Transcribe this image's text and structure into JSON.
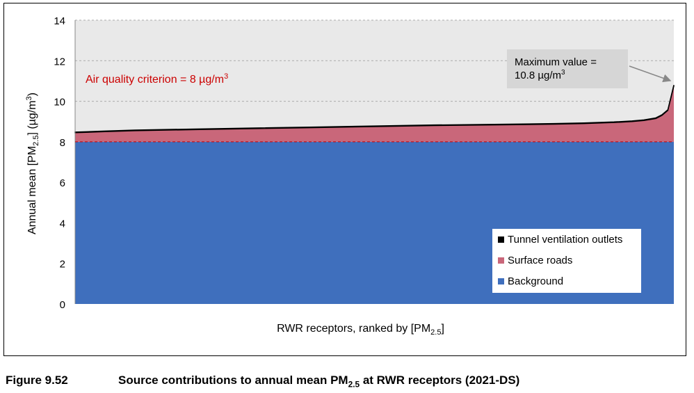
{
  "figure": {
    "number": "Figure 9.52",
    "title_pre": "Source contributions to annual mean PM",
    "title_sub": "2.5",
    "title_post": " at RWR receptors (2021-DS)"
  },
  "chart_data": {
    "type": "area",
    "stacked": true,
    "xlabel_pre": "RWR receptors, ranked by [PM",
    "xlabel_sub": "2.5",
    "xlabel_post": "]",
    "ylabel_pre": "Annual mean [PM",
    "ylabel_sub": "2.5",
    "ylabel_mid": "] (µg/m",
    "ylabel_sup": "3",
    "ylabel_post": ")",
    "ylim": [
      0,
      14
    ],
    "yticks": [
      "0",
      "2",
      "4",
      "6",
      "8",
      "10",
      "12",
      "14"
    ],
    "grid": true,
    "legend_position": "bottom-right",
    "x": [
      0,
      0.05,
      0.1,
      0.2,
      0.3,
      0.4,
      0.5,
      0.6,
      0.7,
      0.8,
      0.85,
      0.9,
      0.93,
      0.95,
      0.97,
      0.98,
      0.99,
      1.0
    ],
    "series": [
      {
        "name": "Tunnel ventilation outlets",
        "color": "#000000",
        "values": [
          0.03,
          0.03,
          0.03,
          0.03,
          0.03,
          0.03,
          0.03,
          0.03,
          0.03,
          0.03,
          0.03,
          0.03,
          0.03,
          0.03,
          0.03,
          0.03,
          0.03,
          0.05
        ]
      },
      {
        "name": "Surface roads",
        "color": "#c9677a",
        "values": [
          0.45,
          0.5,
          0.55,
          0.6,
          0.65,
          0.7,
          0.75,
          0.8,
          0.83,
          0.87,
          0.9,
          0.95,
          1.0,
          1.05,
          1.15,
          1.3,
          1.55,
          2.75
        ]
      },
      {
        "name": "Background",
        "color": "#3f6fbd",
        "values": [
          8,
          8,
          8,
          8,
          8,
          8,
          8,
          8,
          8,
          8,
          8,
          8,
          8,
          8,
          8,
          8,
          8,
          8
        ]
      }
    ],
    "criterion": {
      "value": 8,
      "label_pre": "Air quality criterion = 8 µg/m",
      "label_sup": "3",
      "color": "#cc0000"
    },
    "annotation": {
      "line1": "Maximum value =",
      "line2_pre": "10.8 µg/m",
      "line2_sup": "3"
    },
    "plot_background": "#e9e9e9"
  }
}
